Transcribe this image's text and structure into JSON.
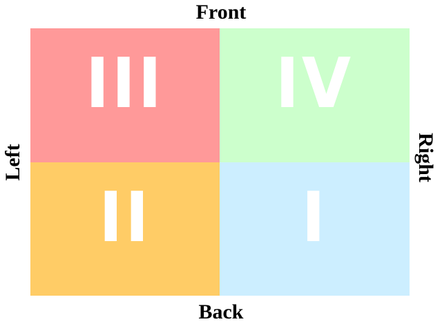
{
  "labels": {
    "front": "Front",
    "back": "Back",
    "left": "Left",
    "right": "Right"
  },
  "quadrants": [
    {
      "id": "top-left",
      "numeral": "III",
      "color": "#ff9999"
    },
    {
      "id": "top-right",
      "numeral": "IV",
      "color": "#ccffcc"
    },
    {
      "id": "bottom-left",
      "numeral": "II",
      "color": "#ffcc66"
    },
    {
      "id": "bottom-right",
      "numeral": "I",
      "color": "#cceeff"
    }
  ]
}
